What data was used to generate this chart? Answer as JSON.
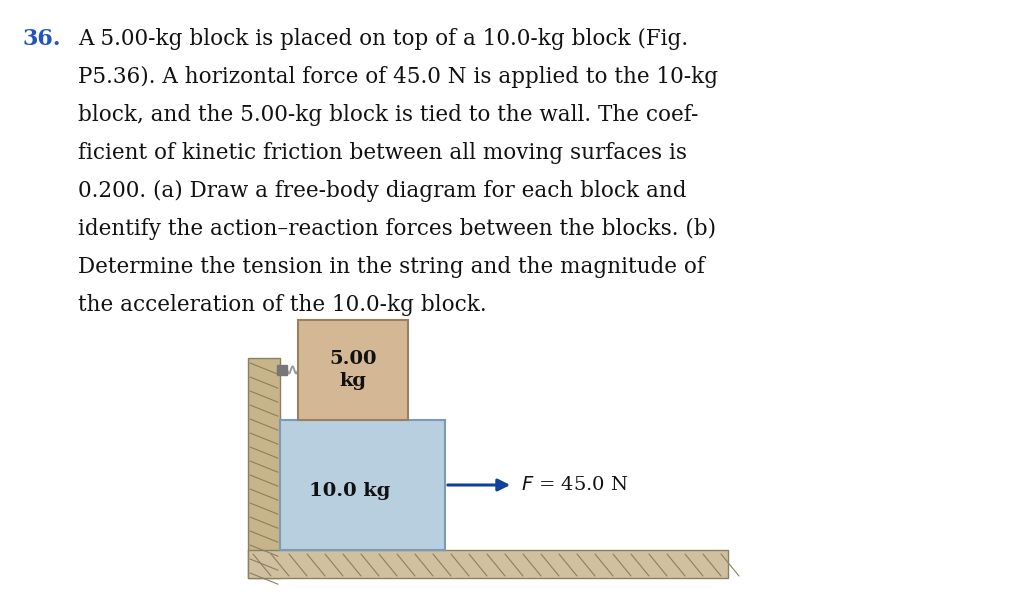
{
  "bg_color": "#ffffff",
  "number_label": "36.",
  "number_color": "#2255bb",
  "paragraph_lines": [
    "A 5.00-kg block is placed on top of a 10.0-kg block (Fig.",
    "P5.36). A horizontal force of 45.0 N is applied to the 10-kg",
    "block, and the 5.00-kg block is tied to the wall. The coef-",
    "ficient of kinetic friction between all moving surfaces is",
    "0.200. (a) Draw a free-body diagram for each block and",
    "identify the action–reaction forces between the blocks. (b)",
    "Determine the tension in the string and the magnitude of",
    "the acceleration of the 10.0-kg block."
  ],
  "block_top_color": "#d4b896",
  "block_top_edge_color": "#9a8060",
  "block_bottom_color": "#b8cfe0",
  "block_bottom_edge_color": "#7a9ab8",
  "wall_color": "#c8b48a",
  "floor_color": "#d0c0a0",
  "arrow_color": "#1040a0",
  "force_label_F": "F",
  "force_label_rest": "= 45.0 N"
}
